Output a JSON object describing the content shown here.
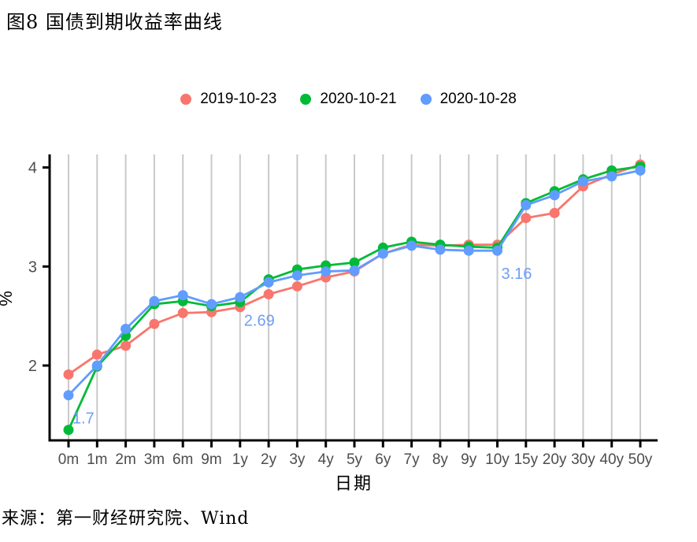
{
  "page": {
    "title": "图8 国债到期收益率曲线",
    "source": "来源：第一财经研究院、Wind"
  },
  "chart_data": {
    "type": "line",
    "title": "图8 国债到期收益率曲线",
    "xlabel": "日期",
    "ylabel": "%",
    "grid": "vertical-only",
    "legend_position": "top",
    "background": "#ffffff",
    "gridline_color": "#c9c9c9",
    "axis_color": "#000000",
    "tick_label_color": "#4d4d4d",
    "annotation_color": "#6f9ef7",
    "categories": [
      "0m",
      "1m",
      "2m",
      "3m",
      "6m",
      "9m",
      "1y",
      "2y",
      "3y",
      "4y",
      "5y",
      "6y",
      "7y",
      "8y",
      "9y",
      "10y",
      "15y",
      "20y",
      "30y",
      "40y",
      "50y"
    ],
    "yticks": [
      2,
      3,
      4
    ],
    "ylim": [
      1.25,
      4.13
    ],
    "series": [
      {
        "name": "2019-10-23",
        "color": "#F8766D",
        "values": [
          1.91,
          2.11,
          2.2,
          2.42,
          2.53,
          2.54,
          2.59,
          2.72,
          2.8,
          2.89,
          2.95,
          3.13,
          3.22,
          3.21,
          3.22,
          3.22,
          3.49,
          3.54,
          3.81,
          3.93,
          4.03
        ]
      },
      {
        "name": "2020-10-21",
        "color": "#00BA38",
        "values": [
          1.35,
          1.99,
          2.3,
          2.62,
          2.65,
          2.6,
          2.64,
          2.87,
          2.97,
          3.01,
          3.04,
          3.19,
          3.25,
          3.22,
          3.2,
          3.19,
          3.64,
          3.76,
          3.88,
          3.97,
          4.01
        ]
      },
      {
        "name": "2020-10-28",
        "color": "#619CFF",
        "values": [
          1.7,
          2.0,
          2.37,
          2.65,
          2.71,
          2.62,
          2.69,
          2.84,
          2.91,
          2.95,
          2.96,
          3.13,
          3.21,
          3.17,
          3.16,
          3.16,
          3.62,
          3.72,
          3.86,
          3.91,
          3.97
        ]
      }
    ],
    "annotations": [
      {
        "text": "1.7",
        "series": "2020-10-28",
        "category": "0m",
        "value": 1.7
      },
      {
        "text": "2.69",
        "series": "2020-10-28",
        "category": "1y",
        "value": 2.69
      },
      {
        "text": "3.16",
        "series": "2020-10-28",
        "category": "10y",
        "value": 3.16
      }
    ]
  }
}
